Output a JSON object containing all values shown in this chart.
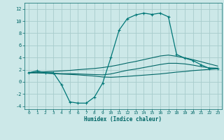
{
  "xlabel": "Humidex (Indice chaleur)",
  "xlim": [
    -0.5,
    23.5
  ],
  "ylim": [
    -4.5,
    13
  ],
  "yticks": [
    -4,
    -2,
    0,
    2,
    4,
    6,
    8,
    10,
    12
  ],
  "xticks": [
    0,
    1,
    2,
    3,
    4,
    5,
    6,
    7,
    8,
    9,
    10,
    11,
    12,
    13,
    14,
    15,
    16,
    17,
    18,
    19,
    20,
    21,
    22,
    23
  ],
  "bg_color": "#cce8e8",
  "grid_color": "#a8cccc",
  "line_color": "#006666",
  "line_color2": "#007777",
  "main_curve": [
    1.5,
    1.8,
    1.5,
    1.5,
    -0.5,
    -3.3,
    -3.5,
    -3.5,
    -2.5,
    -0.2,
    4.0,
    8.5,
    10.4,
    11.0,
    11.3,
    11.1,
    11.3,
    10.7,
    4.5,
    3.9,
    3.5,
    2.8,
    2.2,
    2.2
  ],
  "line2": [
    1.5,
    1.5,
    1.45,
    1.4,
    1.35,
    1.35,
    1.3,
    1.25,
    1.2,
    1.15,
    1.3,
    1.6,
    1.9,
    2.1,
    2.35,
    2.6,
    2.85,
    3.05,
    3.05,
    2.95,
    2.75,
    2.5,
    2.3,
    2.25
  ],
  "line3": [
    1.5,
    1.48,
    1.42,
    1.35,
    1.28,
    1.22,
    1.15,
    1.05,
    0.95,
    0.8,
    0.75,
    0.82,
    0.9,
    1.0,
    1.1,
    1.2,
    1.3,
    1.45,
    1.6,
    1.7,
    1.85,
    1.95,
    2.05,
    2.15
  ],
  "line4": [
    1.5,
    1.6,
    1.65,
    1.72,
    1.8,
    1.88,
    2.0,
    2.1,
    2.2,
    2.35,
    2.55,
    2.8,
    3.1,
    3.35,
    3.65,
    3.95,
    4.25,
    4.4,
    4.2,
    3.95,
    3.65,
    3.3,
    2.95,
    2.6
  ]
}
